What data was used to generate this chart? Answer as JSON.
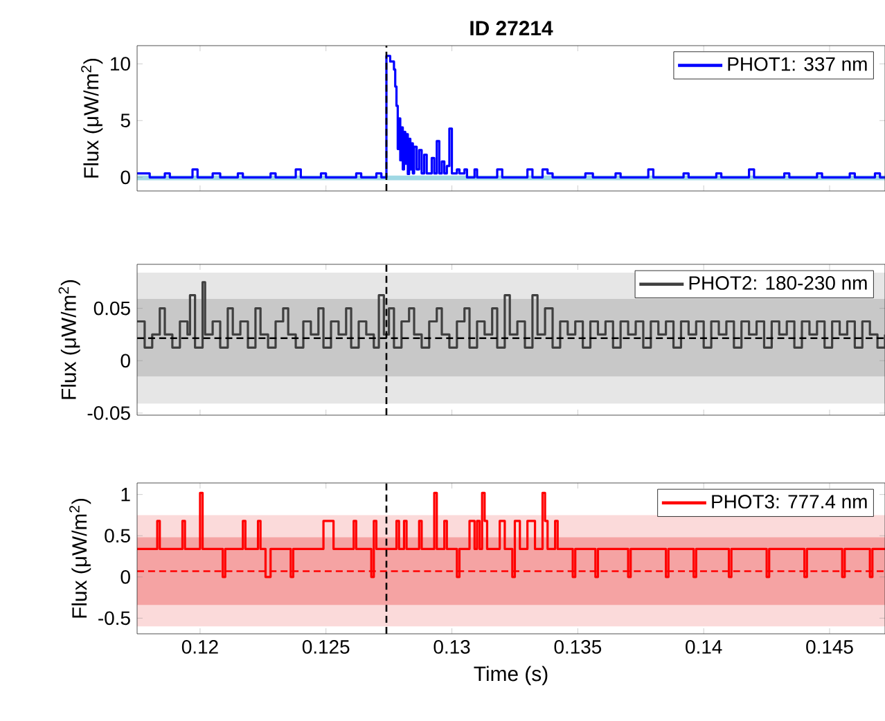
{
  "chart_data": [
    {
      "type": "step",
      "title": "ID 27214",
      "ylabel": "Flux (μW/m$^{2}$)",
      "xlim": [
        0.1175,
        0.1472
      ],
      "ylim": [
        -1.2,
        11.6
      ],
      "xticks": [
        0.12,
        0.125,
        0.13,
        0.135,
        0.14,
        0.145
      ],
      "yticks": [
        0,
        5,
        10
      ],
      "tick_labels": "y",
      "legend": "top right",
      "bands": [
        {
          "axis": "y",
          "from": -0.25,
          "to": 0.15,
          "color": "#9fd8e4"
        }
      ],
      "ref_lines": [
        {
          "axis": "x",
          "value": 0.1274,
          "color": "#000000",
          "line_style": "dashed"
        }
      ],
      "series": [
        {
          "name": "PHOT1: 337 nm",
          "color": "#0000ff",
          "x": [
            0.1175,
            0.118,
            0.1186,
            0.1188,
            0.1197,
            0.1199,
            0.1205,
            0.1208,
            0.1215,
            0.1217,
            0.1228,
            0.123,
            0.1238,
            0.124,
            0.1248,
            0.125,
            0.1262,
            0.1264,
            0.127,
            0.1272,
            0.1274,
            0.12755,
            0.1277,
            0.12775,
            0.1278,
            0.12785,
            0.1279,
            0.12795,
            0.128,
            0.12805,
            0.1281,
            0.12815,
            0.1282,
            0.12825,
            0.1283,
            0.12835,
            0.1284,
            0.12845,
            0.1285,
            0.1286,
            0.1287,
            0.1288,
            0.1289,
            0.129,
            0.1292,
            0.1293,
            0.1294,
            0.1295,
            0.1296,
            0.1297,
            0.1298,
            0.1299,
            0.13,
            0.1302,
            0.1303,
            0.1305,
            0.1306,
            0.1309,
            0.131,
            0.1318,
            0.132,
            0.133,
            0.1332,
            0.1336,
            0.1338,
            0.134,
            0.1353,
            0.1356,
            0.1365,
            0.1367,
            0.1378,
            0.138,
            0.1392,
            0.1394,
            0.1405,
            0.1407,
            0.1418,
            0.142,
            0.1432,
            0.1434,
            0.1445,
            0.1447,
            0.1458,
            0.146,
            0.1468,
            0.147,
            0.1472
          ],
          "values": [
            0.35,
            0,
            0.35,
            0,
            0.7,
            0,
            0.35,
            0,
            0.35,
            0,
            0.35,
            0,
            0.7,
            0,
            0.35,
            0,
            0.35,
            0,
            0.35,
            0,
            10.7,
            10.2,
            9.5,
            8.0,
            6.3,
            2.5,
            5.2,
            1.5,
            4.4,
            0.7,
            4.0,
            1.2,
            3.8,
            0.3,
            3.4,
            0.7,
            3.0,
            0.35,
            2.7,
            0.7,
            2.4,
            0.35,
            2.0,
            0.35,
            1.7,
            0.35,
            3.2,
            0.35,
            1.4,
            0.35,
            1.0,
            4.3,
            0.35,
            0.7,
            0.35,
            0.7,
            0,
            0.7,
            0,
            0.7,
            0,
            0.7,
            0,
            0.7,
            0.35,
            0,
            0.35,
            0,
            0.35,
            0,
            0.7,
            0,
            0.35,
            0,
            0.35,
            0,
            0.7,
            0,
            0.35,
            0,
            0.35,
            0,
            0.35,
            0,
            0.35,
            0,
            0
          ]
        }
      ]
    },
    {
      "type": "step",
      "ylabel": "Flux (μW/m$^{2}$)",
      "xlim": [
        0.1175,
        0.1472
      ],
      "ylim": [
        -0.052,
        0.092
      ],
      "xticks": [
        0.12,
        0.125,
        0.13,
        0.135,
        0.14,
        0.145
      ],
      "yticks": [
        -0.05,
        0,
        0.05
      ],
      "tick_labels": "y",
      "legend": "top right",
      "bands": [
        {
          "axis": "y",
          "from": -0.041,
          "to": 0.084,
          "color": "#e6e6e6"
        },
        {
          "axis": "y",
          "from": -0.015,
          "to": 0.059,
          "color": "#c8c8c8"
        }
      ],
      "ref_lines": [
        {
          "axis": "y",
          "value": 0.0215,
          "color": "#000000",
          "line_style": "dashed"
        },
        {
          "axis": "x",
          "value": 0.1274,
          "color": "#000000",
          "line_style": "dashed"
        }
      ],
      "series": [
        {
          "name": "PHOT2: 180-230 nm",
          "color": "#404040",
          "x": [
            0.1175,
            0.1178,
            0.1181,
            0.1184,
            0.1186,
            0.1189,
            0.1192,
            0.1195,
            0.1196,
            0.1198,
            0.1201,
            0.1202,
            0.1205,
            0.1208,
            0.1211,
            0.1213,
            0.1216,
            0.1219,
            0.1222,
            0.1224,
            0.1227,
            0.123,
            0.1233,
            0.1235,
            0.1238,
            0.1241,
            0.1244,
            0.1247,
            0.1249,
            0.1252,
            0.1255,
            0.1258,
            0.126,
            0.1263,
            0.1266,
            0.1269,
            0.1271,
            0.1273,
            0.1275,
            0.1277,
            0.128,
            0.1283,
            0.1285,
            0.1288,
            0.1291,
            0.1294,
            0.1296,
            0.1299,
            0.1302,
            0.1305,
            0.1307,
            0.131,
            0.1313,
            0.1316,
            0.1318,
            0.1321,
            0.1323,
            0.1326,
            0.1329,
            0.1332,
            0.1334,
            0.1337,
            0.134,
            0.1343,
            0.1346,
            0.1349,
            0.1352,
            0.1355,
            0.1358,
            0.1361,
            0.1364,
            0.1367,
            0.137,
            0.1373,
            0.1376,
            0.1379,
            0.1382,
            0.1385,
            0.1388,
            0.1391,
            0.1394,
            0.1397,
            0.14,
            0.1403,
            0.1406,
            0.1409,
            0.1412,
            0.1415,
            0.1418,
            0.1421,
            0.1424,
            0.1427,
            0.143,
            0.1433,
            0.1436,
            0.1439,
            0.1442,
            0.1445,
            0.1448,
            0.1451,
            0.1454,
            0.1457,
            0.146,
            0.1463,
            0.1466,
            0.1469,
            0.1472
          ],
          "values": [
            0.0375,
            0.0125,
            0.025,
            0.05,
            0.025,
            0.0125,
            0.0375,
            0.025,
            0.0625,
            0.0125,
            0.075,
            0.025,
            0.0375,
            0.0125,
            0.05,
            0.025,
            0.0375,
            0.0125,
            0.05,
            0.025,
            0.0125,
            0.0375,
            0.05,
            0.025,
            0.0125,
            0.0375,
            0.025,
            0.05,
            0.0125,
            0.0375,
            0.025,
            0.05,
            0.0125,
            0.0375,
            0.025,
            0.0125,
            0.0625,
            0.025,
            0.05,
            0.0125,
            0.0375,
            0.05,
            0.025,
            0.0125,
            0.0375,
            0.05,
            0.025,
            0.0125,
            0.0375,
            0.05,
            0.0125,
            0.0375,
            0.025,
            0.05,
            0.0125,
            0.0625,
            0.025,
            0.0375,
            0.0125,
            0.0625,
            0.025,
            0.05,
            0.0125,
            0.0375,
            0.025,
            0.0375,
            0.0125,
            0.0375,
            0.025,
            0.0375,
            0.0125,
            0.0375,
            0.025,
            0.0375,
            0.0125,
            0.0375,
            0.025,
            0.0375,
            0.0125,
            0.0375,
            0.025,
            0.0375,
            0.0125,
            0.0375,
            0.025,
            0.0375,
            0.0125,
            0.0375,
            0.025,
            0.0375,
            0.0125,
            0.0375,
            0.025,
            0.0375,
            0.0125,
            0.0375,
            0.025,
            0.0375,
            0.0125,
            0.0375,
            0.025,
            0.0375,
            0.0125,
            0.0375,
            0.025,
            0.0125,
            0.025
          ]
        }
      ]
    },
    {
      "type": "step",
      "xlabel": "Time (s)",
      "ylabel": "Flux (μW/m$^{2}$)",
      "xlim": [
        0.1175,
        0.1472
      ],
      "ylim": [
        -0.69,
        1.14
      ],
      "xticks": [
        0.12,
        0.125,
        0.13,
        0.135,
        0.14,
        0.145
      ],
      "yticks": [
        -0.5,
        0,
        0.5,
        1
      ],
      "legend": "top right",
      "bands": [
        {
          "axis": "y",
          "from": -0.6,
          "to": 0.75,
          "color": "#fbdada"
        },
        {
          "axis": "y",
          "from": -0.34,
          "to": 0.48,
          "color": "#f5a3a3"
        }
      ],
      "ref_lines": [
        {
          "axis": "y",
          "value": 0.07,
          "color": "#ff0000",
          "line_style": "dashed"
        },
        {
          "axis": "x",
          "value": 0.1274,
          "color": "#000000",
          "line_style": "dashed"
        }
      ],
      "series": [
        {
          "name": "PHOT3: 777.4 nm",
          "color": "#ff0000",
          "x": [
            0.1175,
            0.1183,
            0.1184,
            0.1193,
            0.1194,
            0.12,
            0.1201,
            0.1209,
            0.121,
            0.1217,
            0.1218,
            0.1223,
            0.1224,
            0.1226,
            0.1228,
            0.1236,
            0.1237,
            0.1249,
            0.1253,
            0.1261,
            0.1262,
            0.1268,
            0.1269,
            0.127,
            0.1278,
            0.1279,
            0.1281,
            0.1282,
            0.1287,
            0.1288,
            0.1293,
            0.1294,
            0.1297,
            0.1298,
            0.1302,
            0.1303,
            0.1307,
            0.1309,
            0.131,
            0.1311,
            0.1312,
            0.1313,
            0.1314,
            0.1319,
            0.1321,
            0.1324,
            0.1325,
            0.1327,
            0.133,
            0.1333,
            0.1336,
            0.1337,
            0.1338,
            0.1341,
            0.1342,
            0.1348,
            0.1349,
            0.1357,
            0.1358,
            0.137,
            0.1371,
            0.1385,
            0.1386,
            0.1396,
            0.1397,
            0.141,
            0.1411,
            0.1425,
            0.1426,
            0.144,
            0.1441,
            0.1455,
            0.1456,
            0.1466,
            0.1467,
            0.1472
          ],
          "values": [
            0.34,
            0.68,
            0.34,
            0.68,
            0.34,
            1.02,
            0.34,
            0,
            0.34,
            0.68,
            0.34,
            0.68,
            0.34,
            0,
            0.34,
            0,
            0.34,
            0.68,
            0.34,
            0.68,
            0.34,
            0,
            0.68,
            0.34,
            0.68,
            0.34,
            0.68,
            0.34,
            0.68,
            0.34,
            1.02,
            0.34,
            0.68,
            0.34,
            0,
            0.34,
            0.68,
            0.34,
            0.68,
            0.34,
            1.02,
            0.68,
            0.34,
            0.68,
            0.34,
            0,
            0.68,
            0.34,
            0.68,
            0.34,
            1.02,
            0.68,
            0.34,
            0.68,
            0.34,
            0,
            0.34,
            0,
            0.34,
            0,
            0.34,
            0,
            0.34,
            0,
            0.34,
            0,
            0.34,
            0,
            0.34,
            0,
            0.34,
            0,
            0.34,
            0,
            0.34,
            0.34
          ]
        }
      ]
    }
  ]
}
